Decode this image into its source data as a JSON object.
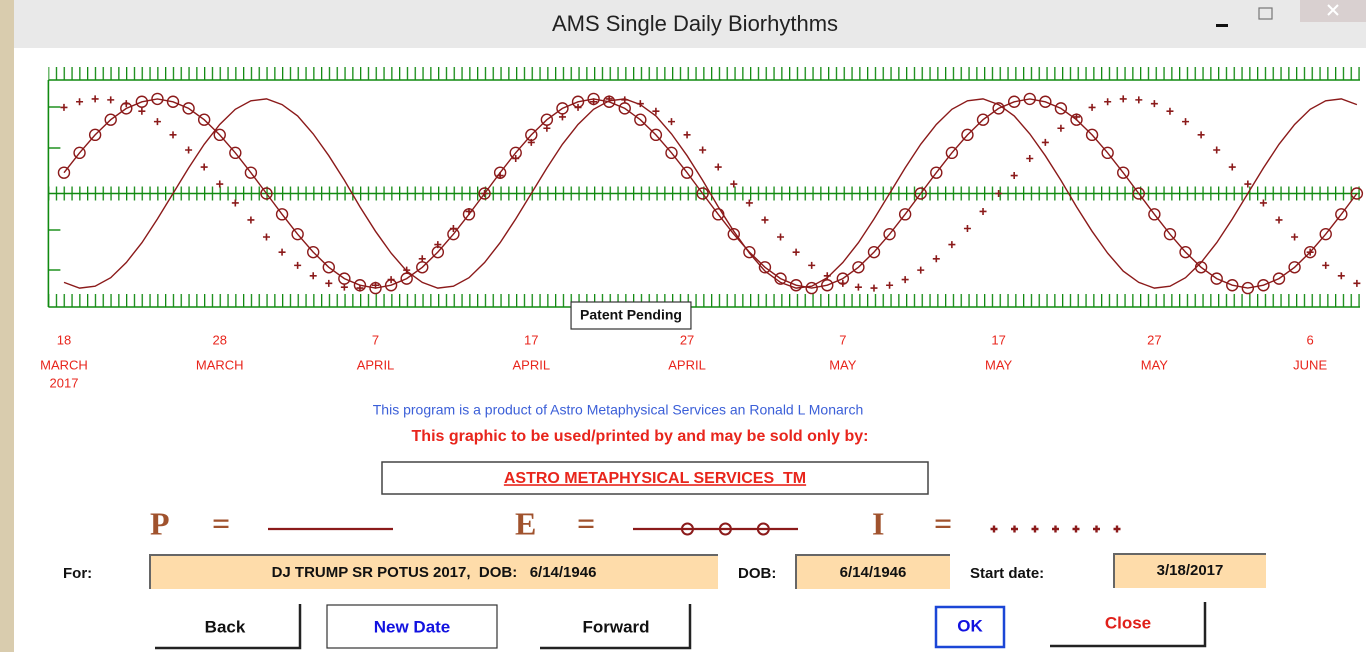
{
  "window": {
    "title": "AMS Single Daily Biorhythms"
  },
  "chart_data": {
    "type": "line",
    "annotation": "Patent Pending",
    "x": [
      0,
      1,
      2,
      3,
      4,
      5,
      6,
      7,
      8,
      9,
      10,
      11,
      12,
      13,
      14,
      15,
      16,
      17,
      18,
      19,
      20,
      21,
      22,
      23,
      24,
      25,
      26,
      27,
      28,
      29,
      30,
      31,
      32,
      33,
      34,
      35,
      36,
      37,
      38,
      39,
      40,
      41,
      42,
      43,
      44,
      45,
      46,
      47,
      48,
      49,
      50,
      51,
      52,
      53,
      54,
      55,
      56,
      57,
      58,
      59,
      60,
      61,
      62,
      63,
      64,
      65,
      66,
      67,
      68,
      69,
      70,
      71,
      72,
      73,
      74,
      75,
      76,
      77,
      78,
      79,
      80,
      81,
      82,
      83
    ],
    "xlim": [
      -1,
      83.2
    ],
    "ylim": [
      -1.2,
      1.2
    ],
    "yticks": [
      -1.2,
      0,
      1.2
    ],
    "xticks": [
      0,
      10,
      20,
      30,
      40,
      50,
      60,
      70,
      80
    ],
    "xtick_labels": [
      {
        "day": "18",
        "month": "MARCH",
        "year": "2017"
      },
      {
        "day": "28",
        "month": "MARCH"
      },
      {
        "day": "7",
        "month": "APRIL"
      },
      {
        "day": "17",
        "month": "APRIL"
      },
      {
        "day": "27",
        "month": "APRIL"
      },
      {
        "day": "7",
        "month": "MAY"
      },
      {
        "day": "17",
        "month": "MAY"
      },
      {
        "day": "27",
        "month": "MAY"
      },
      {
        "day": "6",
        "month": "JUNE"
      }
    ],
    "legend_separator": "=",
    "series": [
      {
        "name": "P",
        "color": "#8b1a1a",
        "marker": "none",
        "values": [
          -0.94,
          -1,
          -0.98,
          -0.89,
          -0.73,
          -0.52,
          -0.27,
          0,
          0.27,
          0.52,
          0.73,
          0.89,
          0.98,
          1,
          0.94,
          0.82,
          0.63,
          0.4,
          0.14,
          -0.14,
          -0.4,
          -0.63,
          -0.82,
          -0.94,
          -1,
          -0.98,
          -0.89,
          -0.73,
          -0.52,
          -0.27,
          0,
          0.27,
          0.52,
          0.73,
          0.89,
          0.98,
          1,
          0.94,
          0.82,
          0.63,
          0.4,
          0.14,
          -0.14,
          -0.4,
          -0.63,
          -0.82,
          -0.94,
          -1,
          -0.98,
          -0.89,
          -0.73,
          -0.52,
          -0.27,
          0,
          0.27,
          0.52,
          0.73,
          0.89,
          0.98,
          1,
          0.94,
          0.82,
          0.63,
          0.4,
          0.14,
          -0.14,
          -0.4,
          -0.63,
          -0.82,
          -0.94,
          -1,
          -0.98,
          -0.89,
          -0.73,
          -0.52,
          -0.27,
          0,
          0.27,
          0.52,
          0.73,
          0.89,
          0.98,
          1,
          0.94
        ]
      },
      {
        "name": "E",
        "color": "#8b1a1a",
        "marker": "circle",
        "values": [
          0.22,
          0.43,
          0.62,
          0.78,
          0.9,
          0.97,
          1,
          0.97,
          0.9,
          0.78,
          0.62,
          0.43,
          0.22,
          0,
          -0.22,
          -0.43,
          -0.62,
          -0.78,
          -0.9,
          -0.97,
          -1,
          -0.97,
          -0.9,
          -0.78,
          -0.62,
          -0.43,
          -0.22,
          0,
          0.22,
          0.43,
          0.62,
          0.78,
          0.9,
          0.97,
          1,
          0.97,
          0.9,
          0.78,
          0.62,
          0.43,
          0.22,
          0,
          -0.22,
          -0.43,
          -0.62,
          -0.78,
          -0.9,
          -0.97,
          -1,
          -0.97,
          -0.9,
          -0.78,
          -0.62,
          -0.43,
          -0.22,
          0,
          0.22,
          0.43,
          0.62,
          0.78,
          0.9,
          0.97,
          1,
          0.97,
          0.9,
          0.78,
          0.62,
          0.43,
          0.22,
          0,
          -0.22,
          -0.43,
          -0.62,
          -0.78,
          -0.9,
          -0.97,
          -1,
          -0.97,
          -0.9,
          -0.78,
          -0.62,
          -0.43,
          -0.22,
          0
        ]
      },
      {
        "name": "I",
        "color": "#8b1a1a",
        "marker": "plus",
        "values": [
          0.91,
          0.97,
          1,
          0.99,
          0.95,
          0.87,
          0.76,
          0.62,
          0.46,
          0.28,
          0.1,
          -0.1,
          -0.28,
          -0.46,
          -0.62,
          -0.76,
          -0.87,
          -0.95,
          -0.99,
          -1,
          -0.97,
          -0.91,
          -0.81,
          -0.69,
          -0.54,
          -0.37,
          -0.19,
          0,
          0.19,
          0.37,
          0.54,
          0.69,
          0.81,
          0.91,
          0.97,
          1,
          0.99,
          0.95,
          0.87,
          0.76,
          0.62,
          0.46,
          0.28,
          0.1,
          -0.1,
          -0.28,
          -0.46,
          -0.62,
          -0.76,
          -0.87,
          -0.95,
          -0.99,
          -1,
          -0.97,
          -0.91,
          -0.81,
          -0.69,
          -0.54,
          -0.37,
          -0.19,
          0,
          0.19,
          0.37,
          0.54,
          0.69,
          0.81,
          0.91,
          0.97,
          1,
          0.99,
          0.95,
          0.87,
          0.76,
          0.62,
          0.46,
          0.28,
          0.1,
          -0.1,
          -0.28,
          -0.46,
          -0.62,
          -0.76,
          -0.87,
          -0.95
        ]
      }
    ]
  },
  "notices": {
    "credit": "This program is a product of Astro Metaphysical Services an Ronald L Monarch",
    "license": "This graphic to be used/printed by and may be sold only by:",
    "seller": "ASTRO METAPHYSICAL SERVICES  TM"
  },
  "form": {
    "for_label": "For:",
    "for_value": "DJ TRUMP SR POTUS 2017,  DOB:   6/14/1946",
    "dob_label": "DOB:",
    "dob_value": "6/14/1946",
    "start_label": "Start date:",
    "start_value": "3/18/2017"
  },
  "buttons": {
    "back": "Back",
    "new_date": "New Date",
    "forward": "Forward",
    "ok": "OK",
    "close": "Close"
  }
}
